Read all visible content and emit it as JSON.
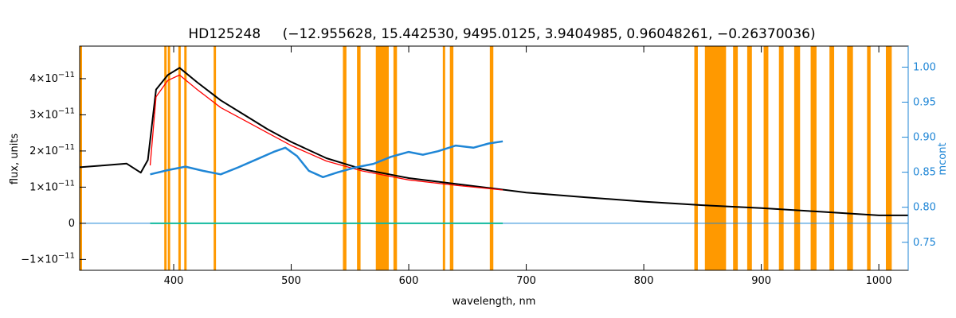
{
  "chart_data": {
    "type": "line",
    "title": {
      "star": "HD125248",
      "params": "(−12.955628, 15.442530, 9495.0125, 3.9404985, 0.96048261, −0.26370036)"
    },
    "xlabel": "wavelength, nm",
    "ylabel": "flux, units",
    "y2label": "mcont",
    "xlim": [
      320,
      1025
    ],
    "ylim": [
      -1.3e-11,
      4.9e-11
    ],
    "y2lim": [
      0.71,
      1.03
    ],
    "x_ticks": [
      {
        "value": 400,
        "label": "400"
      },
      {
        "value": 500,
        "label": "500"
      },
      {
        "value": 600,
        "label": "600"
      },
      {
        "value": 700,
        "label": "700"
      },
      {
        "value": 800,
        "label": "800"
      },
      {
        "value": 900,
        "label": "900"
      },
      {
        "value": 1000,
        "label": "1000"
      }
    ],
    "y_ticks": [
      {
        "value": 4e-11,
        "mant": "4×10",
        "exp": "−11"
      },
      {
        "value": 3e-11,
        "mant": "3×10",
        "exp": "−11"
      },
      {
        "value": 2e-11,
        "mant": "2×10",
        "exp": "−11"
      },
      {
        "value": 1e-11,
        "mant": "1×10",
        "exp": "−11"
      },
      {
        "value": 0,
        "mant": "0",
        "exp": ""
      },
      {
        "value": -1e-11,
        "mant": "−1×10",
        "exp": "−11"
      }
    ],
    "y2_ticks": [
      {
        "value": 1.0,
        "label": "1.00"
      },
      {
        "value": 0.95,
        "label": "0.95"
      },
      {
        "value": 0.9,
        "label": "0.90"
      },
      {
        "value": 0.85,
        "label": "0.85"
      },
      {
        "value": 0.8,
        "label": "0.80"
      },
      {
        "value": 0.75,
        "label": "0.75"
      }
    ],
    "masked_regions": [
      [
        392,
        394
      ],
      [
        395,
        397
      ],
      [
        404,
        406
      ],
      [
        409,
        411
      ],
      [
        434,
        436
      ],
      [
        544,
        547
      ],
      [
        556,
        559
      ],
      [
        572,
        583
      ],
      [
        587,
        590
      ],
      [
        629,
        631
      ],
      [
        635,
        638
      ],
      [
        669,
        672
      ],
      [
        843,
        846
      ],
      [
        852,
        870
      ],
      [
        876,
        880
      ],
      [
        888,
        892
      ],
      [
        902,
        906
      ],
      [
        915,
        919
      ],
      [
        928,
        933
      ],
      [
        942,
        947
      ],
      [
        958,
        962
      ],
      [
        973,
        978
      ],
      [
        990,
        993
      ],
      [
        1006,
        1011
      ]
    ],
    "series": [
      {
        "id": "observed",
        "color": "#000000",
        "points": [
          [
            320,
            1.55e-11
          ],
          [
            340,
            1.6e-11
          ],
          [
            360,
            1.65e-11
          ],
          [
            372,
            1.4e-11
          ],
          [
            378,
            1.75e-11
          ],
          [
            385,
            3.7e-11
          ],
          [
            395,
            4.1e-11
          ],
          [
            405,
            4.3e-11
          ],
          [
            420,
            3.9e-11
          ],
          [
            440,
            3.4e-11
          ],
          [
            460,
            3e-11
          ],
          [
            480,
            2.6e-11
          ],
          [
            500,
            2.25e-11
          ],
          [
            530,
            1.8e-11
          ],
          [
            560,
            1.5e-11
          ],
          [
            600,
            1.25e-11
          ],
          [
            650,
            1.05e-11
          ],
          [
            700,
            8.5e-12
          ],
          [
            750,
            7.2e-12
          ],
          [
            800,
            6e-12
          ],
          [
            850,
            5e-12
          ],
          [
            900,
            4.2e-12
          ],
          [
            950,
            3.2e-12
          ],
          [
            1000,
            2.2e-12
          ],
          [
            1025,
            2.2e-12
          ]
        ]
      },
      {
        "id": "model",
        "color": "#ff0000",
        "points": [
          [
            380,
            1.6e-11
          ],
          [
            385,
            3.5e-11
          ],
          [
            395,
            3.95e-11
          ],
          [
            405,
            4.1e-11
          ],
          [
            420,
            3.7e-11
          ],
          [
            440,
            3.2e-11
          ],
          [
            460,
            2.85e-11
          ],
          [
            480,
            2.5e-11
          ],
          [
            500,
            2.15e-11
          ],
          [
            530,
            1.72e-11
          ],
          [
            560,
            1.45e-11
          ],
          [
            600,
            1.2e-11
          ],
          [
            640,
            1.05e-11
          ],
          [
            680,
            9.2e-12
          ]
        ]
      },
      {
        "id": "residuals",
        "color": "#00ee66",
        "points": [
          [
            380,
            0
          ],
          [
            400,
            0
          ],
          [
            450,
            0
          ],
          [
            500,
            0
          ],
          [
            550,
            0
          ],
          [
            600,
            0
          ],
          [
            680,
            0
          ]
        ]
      },
      {
        "id": "mcont",
        "color": "#1f86d6",
        "axis": "right",
        "points": [
          [
            380,
            0.847
          ],
          [
            395,
            0.853
          ],
          [
            410,
            0.858
          ],
          [
            425,
            0.852
          ],
          [
            440,
            0.847
          ],
          [
            455,
            0.857
          ],
          [
            470,
            0.868
          ],
          [
            485,
            0.879
          ],
          [
            495,
            0.885
          ],
          [
            505,
            0.873
          ],
          [
            515,
            0.852
          ],
          [
            527,
            0.843
          ],
          [
            540,
            0.85
          ],
          [
            555,
            0.857
          ],
          [
            570,
            0.862
          ],
          [
            585,
            0.872
          ],
          [
            600,
            0.879
          ],
          [
            612,
            0.875
          ],
          [
            625,
            0.88
          ],
          [
            640,
            0.888
          ],
          [
            655,
            0.885
          ],
          [
            668,
            0.891
          ],
          [
            680,
            0.894
          ]
        ]
      },
      {
        "id": "zero-line",
        "color": "#1f86d6",
        "points": [
          [
            320,
            0
          ],
          [
            1025,
            0
          ]
        ]
      }
    ]
  }
}
